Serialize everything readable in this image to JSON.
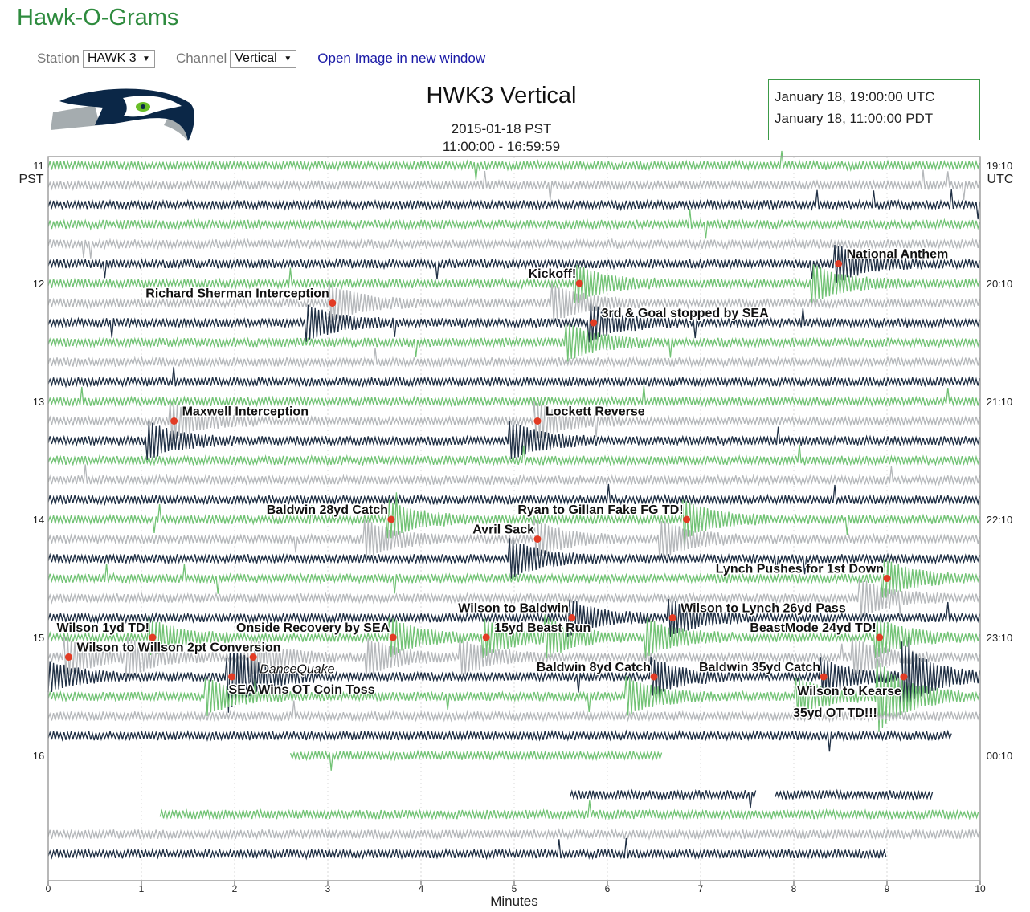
{
  "app": {
    "title": "Hawk-O-Grams"
  },
  "controls": {
    "station_label": "Station",
    "station_value": "HAWK 3",
    "channel_label": "Channel",
    "channel_value": "Vertical",
    "open_link": "Open Image in new window"
  },
  "header": {
    "logo": "seahawks-logo",
    "title": "HWK3 Vertical",
    "date": "2015-01-18 PST",
    "time_range": "11:00:00 - 16:59:59"
  },
  "time_box": {
    "utc": "January 18, 19:00:00 UTC",
    "pdt": "January 18, 11:00:00 PDT"
  },
  "colors": {
    "green": "#71c274",
    "gray": "#b4b7ba",
    "navy": "#1f2f44",
    "marker": "#e23b24",
    "title_green": "#2e8b3e",
    "frame": "#999999"
  },
  "chart_data": {
    "type": "helicorder",
    "title": "HWK3 Vertical",
    "xlabel": "Minutes",
    "xlim": [
      0,
      10
    ],
    "x_ticks": [
      "0",
      "1",
      "2",
      "3",
      "4",
      "5",
      "6",
      "7",
      "8",
      "9",
      "10"
    ],
    "minutes_per_line": 10,
    "total_lines": 36,
    "line_color_cycle": [
      "green",
      "gray",
      "navy"
    ],
    "left_axis_label": [
      "11",
      "PST"
    ],
    "right_axis_label": [
      "19:10",
      "UTC"
    ],
    "left_hours": [
      {
        "label": "12",
        "line": 6
      },
      {
        "label": "13",
        "line": 12
      },
      {
        "label": "14",
        "line": 18
      },
      {
        "label": "15",
        "line": 24
      },
      {
        "label": "16",
        "line": 30
      }
    ],
    "right_hours": [
      {
        "label": "20:10",
        "line": 6
      },
      {
        "label": "21:10",
        "line": 12
      },
      {
        "label": "22:10",
        "line": 18
      },
      {
        "label": "23:10",
        "line": 24
      },
      {
        "label": "00:10",
        "line": 30
      }
    ],
    "partial_traces": [
      {
        "line": 29,
        "x_start": 0,
        "x_end": 9.7
      },
      {
        "line": 30,
        "x_start": 2.6,
        "x_end": 6.6
      },
      {
        "line": 32,
        "x_start": 5.6,
        "x_end": 7.6
      },
      {
        "line": 32,
        "x_start": 7.8,
        "x_end": 9.5
      },
      {
        "line": 33,
        "x_start": 1.2,
        "x_end": 10
      },
      {
        "line": 35,
        "x_start": 0,
        "x_end": 9.0
      }
    ],
    "gaps": [
      31
    ],
    "annotations": [
      {
        "label": "National Anthem",
        "line": 5,
        "x": 8.48,
        "label_side": "right"
      },
      {
        "label": "Kickoff!",
        "line": 6,
        "x": 5.7,
        "label_side": "left"
      },
      {
        "label": "Richard Sherman Interception",
        "line": 7,
        "x": 3.05,
        "label_side": "left"
      },
      {
        "label": "3rd & Goal stopped by SEA",
        "line": 8,
        "x": 5.85,
        "label_side": "right"
      },
      {
        "label": "Maxwell Interception",
        "line": 13,
        "x": 1.35,
        "label_side": "right"
      },
      {
        "label": "Lockett Reverse",
        "line": 13,
        "x": 5.25,
        "label_side": "right"
      },
      {
        "label": "Baldwin 28yd Catch",
        "line": 18,
        "x": 3.68,
        "label_side": "left"
      },
      {
        "label": "Ryan to Gillan Fake FG TD!",
        "line": 18,
        "x": 6.85,
        "label_side": "left"
      },
      {
        "label": "Avril Sack",
        "line": 19,
        "x": 5.25,
        "label_side": "left"
      },
      {
        "label": "Lynch Pushes for 1st Down",
        "line": 21,
        "x": 9.0,
        "label_side": "left"
      },
      {
        "label": "Wilson to Baldwin",
        "line": 23,
        "x": 5.62,
        "label_side": "left"
      },
      {
        "label": "Wilson to Lynch 26yd Pass",
        "line": 23,
        "x": 6.7,
        "label_side": "right"
      },
      {
        "label": "Wilson 1yd TD!",
        "line": 24,
        "x": 1.12,
        "label_side": "left"
      },
      {
        "label": "Onside Recovery by SEA",
        "line": 24,
        "x": 3.7,
        "label_side": "left"
      },
      {
        "label": "15yd Beast Run",
        "line": 24,
        "x": 4.7,
        "label_side": "right"
      },
      {
        "label": "BeastMode 24yd TD!",
        "line": 24,
        "x": 8.92,
        "label_side": "left"
      },
      {
        "label": "Wilson to Willson 2pt Conversion",
        "line": 25,
        "x": 0.22,
        "label_side": "right"
      },
      {
        "label": "DanceQuake",
        "line": 25,
        "x": 2.2,
        "label_side": "below-right",
        "italic": true
      },
      {
        "label": "Baldwin 8yd Catch",
        "line": 26,
        "x": 6.5,
        "label_side": "left"
      },
      {
        "label": "Baldwin 35yd Catch",
        "line": 26,
        "x": 8.32,
        "label_side": "left"
      },
      {
        "label": "SEA Wins OT Coin Toss",
        "line": 26,
        "x": 1.97,
        "label_side": "below-right"
      },
      {
        "label": "Wilson to Kearse",
        "line": 26,
        "x": 9.18,
        "label_side": "below-left"
      },
      {
        "label": "35yd OT TD!!!",
        "line": 26,
        "x": 9.18,
        "label_side": "below-left-2"
      }
    ]
  }
}
